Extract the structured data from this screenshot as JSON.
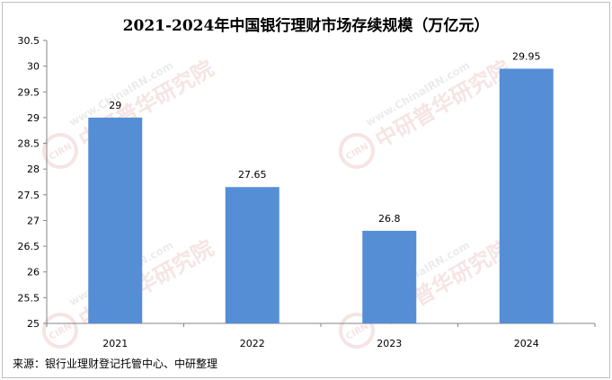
{
  "chart_data": {
    "type": "bar",
    "title": "2021-2024年中国银行理财市场存续规模（万亿元）",
    "categories": [
      "2021",
      "2022",
      "2023",
      "2024"
    ],
    "values": [
      29,
      27.65,
      26.8,
      29.95
    ],
    "data_labels": [
      "29",
      "27.65",
      "26.8",
      "29.95"
    ],
    "ylim": [
      25,
      30.5
    ],
    "yticks": [
      "25",
      "25.5",
      "26",
      "26.5",
      "27",
      "27.5",
      "28",
      "28.5",
      "29",
      "29.5",
      "30",
      "30.5"
    ],
    "xlabel": "",
    "ylabel": "",
    "grid": false,
    "legend": "none",
    "bar_color": "#558ed5"
  },
  "source": "来源：银行业理财登记托管中心、中研整理",
  "watermark": {
    "url": "www.ChinaIRN.com",
    "name": "中研普华研究院",
    "badge": "CIRN",
    "accent_color": "#e8b4b4"
  }
}
